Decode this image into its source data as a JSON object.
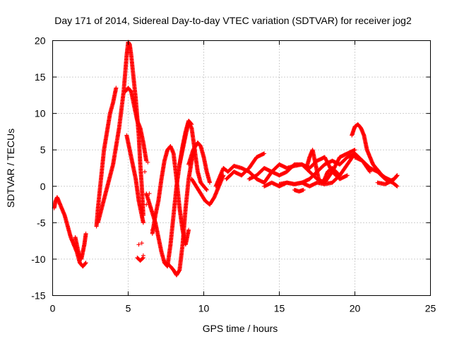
{
  "chart_data": {
    "type": "scatter",
    "title": "Day 171 of 2014, Sidereal Day-to-day VTEC variation (SDTVAR) for receiver jog2",
    "xlabel": "GPS time / hours",
    "ylabel": "SDTVAR / TECUs",
    "xlim": [
      0,
      25
    ],
    "ylim": [
      -15,
      20
    ],
    "xticks": [
      "0",
      "5",
      "10",
      "15",
      "20",
      "25"
    ],
    "yticks": [
      "-15",
      "-10",
      "-5",
      "0",
      "5",
      "10",
      "15",
      "20"
    ],
    "grid": true,
    "legend": "none",
    "marker": "+",
    "series": [
      {
        "name": "jog2",
        "color": "#ff0000",
        "tracks": [
          {
            "x": [
              0.1,
              0.2,
              0.3,
              0.5,
              0.8,
              1.0,
              1.2,
              1.4,
              1.6,
              1.8,
              2.0,
              2.2
            ],
            "y": [
              -3.0,
              -2.0,
              -1.5,
              -2.5,
              -4.0,
              -5.5,
              -7.0,
              -8.0,
              -9.0,
              -10.5,
              -11.0,
              -10.5
            ]
          },
          {
            "x": [
              1.5,
              1.7,
              1.9,
              2.0,
              2.1,
              2.2
            ],
            "y": [
              -7.0,
              -9.0,
              -10.0,
              -9.0,
              -8.0,
              -6.5
            ]
          },
          {
            "x": [
              2.9,
              3.0,
              3.1,
              3.2,
              3.3,
              3.4,
              3.6,
              3.8,
              4.0,
              4.2
            ],
            "y": [
              -5.5,
              -3.0,
              -1.0,
              1.0,
              3.0,
              5.0,
              7.5,
              10.0,
              11.5,
              13.5
            ]
          },
          {
            "x": [
              3.0,
              3.5,
              4.0,
              4.4,
              4.7,
              4.9,
              5.0,
              5.1,
              5.2,
              5.4,
              5.5,
              5.7,
              5.8,
              5.9,
              6.0
            ],
            "y": [
              -5.0,
              -1.0,
              3.0,
              8.0,
              13.0,
              18.0,
              19.8,
              19.5,
              18.0,
              14.0,
              12.0,
              7.0,
              3.0,
              0.0,
              -4.0
            ]
          },
          {
            "x": [
              4.8,
              5.0,
              5.2,
              5.4,
              5.6,
              5.8,
              6.0,
              6.2
            ],
            "y": [
              13.0,
              13.5,
              13.0,
              11.0,
              9.0,
              8.0,
              6.0,
              3.5
            ]
          },
          {
            "x": [
              4.9,
              5.1,
              5.3,
              5.5,
              5.7,
              5.9,
              6.0
            ],
            "y": [
              7.0,
              5.0,
              3.0,
              1.0,
              -2.0,
              -4.0,
              -5.0
            ]
          },
          {
            "x": [
              5.6,
              5.8,
              6.0
            ],
            "y": [
              -9.8,
              -10.2,
              -9.8
            ]
          },
          {
            "x": [
              6.2,
              6.5,
              6.8,
              7.0,
              7.2,
              7.4,
              7.6,
              7.8,
              8.0,
              8.2,
              8.4,
              8.6,
              8.8,
              9.0,
              9.2
            ],
            "y": [
              -1.0,
              -3.0,
              -5.0,
              -7.0,
              -9.0,
              -10.5,
              -11.0,
              -8.0,
              -4.0,
              0.0,
              3.0,
              5.5,
              7.5,
              9.0,
              8.5
            ]
          },
          {
            "x": [
              6.6,
              6.8,
              7.0,
              7.2,
              7.4,
              7.6,
              7.8,
              8.0,
              8.2,
              8.4,
              8.6,
              8.8,
              9.0
            ],
            "y": [
              -6.5,
              -4.0,
              -2.0,
              1.0,
              3.5,
              5.0,
              5.5,
              4.5,
              1.0,
              -3.0,
              -6.0,
              -8.0,
              -6.0
            ]
          },
          {
            "x": [
              7.5,
              7.8,
              8.0,
              8.2,
              8.4,
              8.6,
              8.8,
              9.0,
              9.2,
              9.4
            ],
            "y": [
              -10.5,
              -11.0,
              -11.5,
              -12.2,
              -11.5,
              -8.0,
              -3.0,
              1.0,
              3.5,
              5.0
            ]
          },
          {
            "x": [
              8.4,
              8.6,
              8.8,
              9.0,
              9.2,
              9.4,
              9.6,
              9.8,
              10.0,
              10.2
            ],
            "y": [
              3.0,
              5.0,
              7.0,
              8.8,
              8.0,
              5.0,
              2.0,
              0.5,
              0.0,
              -0.5
            ]
          },
          {
            "x": [
              9.0,
              9.3,
              9.6,
              9.8,
              10.0,
              10.2,
              10.4
            ],
            "y": [
              3.0,
              5.0,
              6.0,
              5.5,
              4.0,
              2.0,
              0.5
            ]
          },
          {
            "x": [
              9.2,
              9.5,
              9.8,
              10.1,
              10.4,
              10.7,
              11.0,
              11.3
            ],
            "y": [
              1.0,
              0.0,
              -1.0,
              -2.0,
              -2.5,
              -1.5,
              0.0,
              1.5
            ]
          },
          {
            "x": [
              10.8,
              11.0,
              11.3,
              11.6,
              12.0,
              12.5,
              13.0,
              13.5,
              14.0,
              14.5,
              15.0,
              15.5,
              16.0,
              16.5,
              17.0,
              17.5,
              18.0,
              18.5,
              19.0,
              19.5,
              20.0
            ],
            "y": [
              0.0,
              1.0,
              2.5,
              2.0,
              2.8,
              2.5,
              2.0,
              1.0,
              0.5,
              2.0,
              3.0,
              2.5,
              2.8,
              3.0,
              2.0,
              1.0,
              0.5,
              2.0,
              4.0,
              4.5,
              5.0
            ]
          },
          {
            "x": [
              11.5,
              12.0,
              12.5,
              13.0,
              13.5,
              14.0
            ],
            "y": [
              1.0,
              2.0,
              1.5,
              2.5,
              4.0,
              4.5
            ]
          },
          {
            "x": [
              13.0,
              13.5,
              14.0,
              14.5,
              15.0,
              15.5,
              16.0,
              16.5,
              17.0,
              17.5,
              18.0,
              18.5,
              19.0,
              19.5
            ],
            "y": [
              1.0,
              1.5,
              2.5,
              2.0,
              1.5,
              2.0,
              3.0,
              3.0,
              2.5,
              3.5,
              4.0,
              2.0,
              1.0,
              1.5
            ]
          },
          {
            "x": [
              14.0,
              14.5,
              15.0,
              15.5,
              16.0,
              16.5,
              17.0,
              17.5,
              18.0,
              18.5,
              19.0,
              19.5,
              20.0
            ],
            "y": [
              0.0,
              0.5,
              0.0,
              0.5,
              0.3,
              0.5,
              0.0,
              0.5,
              0.3,
              0.5,
              1.5,
              3.0,
              4.5
            ]
          },
          {
            "x": [
              15.0,
              15.5,
              16.0,
              16.5,
              17.0,
              17.5,
              18.0,
              18.5,
              19.0,
              19.5,
              20.0,
              20.5,
              21.0
            ],
            "y": [
              0.3,
              0.5,
              0.3,
              0.5,
              1.0,
              2.0,
              3.0,
              3.5,
              3.0,
              4.0,
              4.5,
              3.5,
              2.0
            ]
          },
          {
            "x": [
              16.0,
              16.3,
              16.6
            ],
            "y": [
              -0.5,
              -0.7,
              -0.5
            ]
          },
          {
            "x": [
              16.8,
              17.0,
              17.2,
              17.4,
              17.6,
              17.8,
              18.0,
              18.2,
              18.5,
              19.0
            ],
            "y": [
              2.5,
              4.0,
              5.0,
              3.0,
              1.0,
              0.5,
              1.0,
              2.0,
              2.5,
              1.5
            ]
          },
          {
            "x": [
              19.8,
              20.0,
              20.2,
              20.4,
              20.6,
              20.8,
              21.0,
              21.2,
              21.4,
              21.6,
              21.8,
              22.0,
              22.2,
              22.4,
              22.6,
              22.8
            ],
            "y": [
              7.0,
              8.2,
              8.5,
              8.0,
              7.0,
              5.0,
              4.0,
              3.0,
              2.5,
              2.0,
              1.5,
              1.2,
              1.0,
              0.8,
              1.0,
              1.5
            ]
          },
          {
            "x": [
              20.0,
              20.5,
              21.0,
              21.5,
              22.0,
              22.5,
              22.8
            ],
            "y": [
              4.0,
              3.5,
              2.5,
              2.0,
              1.0,
              0.5,
              0.0
            ]
          },
          {
            "x": [
              21.5,
              22.0,
              22.5,
              22.8
            ],
            "y": [
              0.5,
              0.3,
              0.8,
              1.5
            ]
          }
        ],
        "sparse": {
          "x": [
            5.7,
            6.0,
            6.1,
            6.3,
            6.4,
            5.9,
            6.6,
            6.2
          ],
          "y": [
            -8.0,
            -9.5,
            2.0,
            3.3,
            -1.0,
            -7.8,
            -6.0,
            -2.5
          ]
        }
      }
    ]
  }
}
